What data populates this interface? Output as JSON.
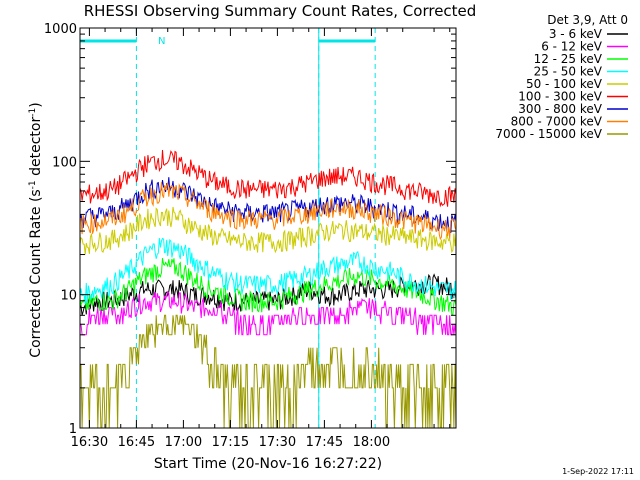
{
  "chart_data": {
    "type": "line",
    "title": "RHESSI Observing Summary Count Rates, Corrected",
    "xlabel": "Start Time (20-Nov-16 16:27:22)",
    "ylabel_main": "Corrected Count Rate (s",
    "ylabel_sup1": "-1",
    "ylabel_mid": " detector",
    "ylabel_sup2": "-1",
    "ylabel_end": ")",
    "yscale": "log",
    "ylim": [
      1,
      1000
    ],
    "xlim_minutes": [
      16.45,
      18.45
    ],
    "x_ticks": [
      {
        "v": 16.5,
        "label": "16:30"
      },
      {
        "v": 16.75,
        "label": "16:45"
      },
      {
        "v": 17.0,
        "label": "17:00"
      },
      {
        "v": 17.25,
        "label": "17:15"
      },
      {
        "v": 17.5,
        "label": "17:30"
      },
      {
        "v": 17.75,
        "label": "17:45"
      },
      {
        "v": 18.0,
        "label": "18:00"
      }
    ],
    "y_ticks": [
      {
        "v": 1,
        "label": "1"
      },
      {
        "v": 10,
        "label": "10"
      },
      {
        "v": 100,
        "label": "100"
      },
      {
        "v": 1000,
        "label": "1000"
      }
    ],
    "legend_header": "Det 3,9, Att 0",
    "legend_placement": "right",
    "annotation_N": "N",
    "footer_date": "1-Sep-2022 17:11",
    "markers": {
      "solid_vertical": [
        16.45,
        17.72
      ],
      "dashed_vertical": [
        16.75,
        17.72,
        18.02
      ],
      "bars": [
        [
          16.45,
          16.75
        ],
        [
          17.72,
          18.02
        ]
      ]
    },
    "series": [
      {
        "name": "3 - 6 keV",
        "color": "#000000",
        "values": [
          8,
          9,
          9,
          10,
          11,
          11,
          11,
          10,
          10,
          9,
          9,
          9,
          9,
          10,
          11,
          10,
          10,
          11,
          11,
          11,
          12,
          12,
          12,
          11
        ]
      },
      {
        "name": "6 - 12 keV",
        "color": "#ff00ff",
        "values": [
          6,
          7,
          7,
          8,
          9,
          9,
          9,
          8,
          8,
          7,
          6,
          6,
          6,
          7,
          7,
          7,
          7,
          8,
          8,
          7,
          7,
          6,
          6,
          6
        ]
      },
      {
        "name": "12 - 25 keV",
        "color": "#00ff00",
        "values": [
          8,
          9,
          9,
          11,
          14,
          16,
          16,
          13,
          11,
          10,
          9,
          9,
          9,
          10,
          11,
          12,
          13,
          14,
          13,
          12,
          11,
          10,
          9,
          8
        ]
      },
      {
        "name": "25 - 50 keV",
        "color": "#00ffff",
        "values": [
          10,
          11,
          12,
          15,
          20,
          24,
          22,
          18,
          15,
          13,
          12,
          12,
          12,
          13,
          14,
          16,
          17,
          18,
          16,
          15,
          13,
          12,
          11,
          11
        ]
      },
      {
        "name": "50 - 100 keV",
        "color": "#cccc00",
        "values": [
          24,
          25,
          26,
          30,
          37,
          40,
          38,
          32,
          28,
          26,
          25,
          25,
          25,
          26,
          28,
          30,
          31,
          30,
          29,
          28,
          27,
          26,
          25,
          25
        ]
      },
      {
        "name": "100 - 300 keV",
        "color": "#ff0000",
        "values": [
          56,
          58,
          62,
          75,
          95,
          105,
          100,
          85,
          72,
          65,
          62,
          62,
          62,
          65,
          70,
          76,
          78,
          77,
          70,
          66,
          62,
          58,
          56,
          55
        ]
      },
      {
        "name": "300 - 800 keV",
        "color": "#0000cc",
        "values": [
          38,
          39,
          41,
          48,
          60,
          66,
          64,
          55,
          47,
          43,
          41,
          41,
          41,
          43,
          45,
          48,
          49,
          48,
          45,
          43,
          40,
          38,
          36,
          34
        ]
      },
      {
        "name": "800 - 7000 keV",
        "color": "#ff8000",
        "values": [
          34,
          35,
          37,
          43,
          54,
          60,
          58,
          50,
          43,
          39,
          37,
          37,
          37,
          39,
          41,
          44,
          45,
          44,
          41,
          39,
          36,
          34,
          32,
          31
        ]
      },
      {
        "name": "7000 - 15000 keV",
        "color": "#999900",
        "values": [
          2,
          2,
          2,
          3,
          5,
          6,
          6,
          5,
          3,
          2,
          2,
          2,
          2,
          2,
          3,
          3,
          3,
          3,
          3,
          2,
          2,
          2,
          2,
          2
        ]
      }
    ]
  }
}
